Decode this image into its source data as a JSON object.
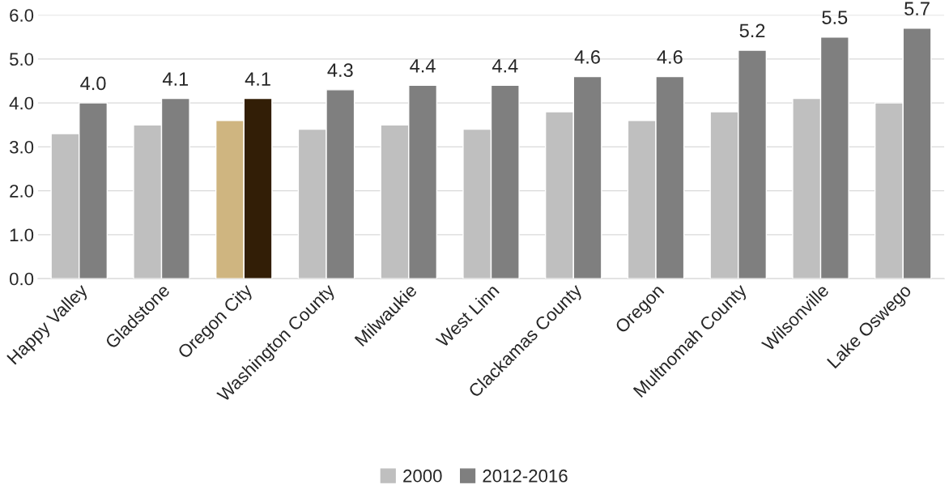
{
  "chart_data": {
    "type": "bar",
    "categories": [
      "Happy Valley",
      "Gladstone",
      "Oregon City",
      "Washington County",
      "Milwaukie",
      "West Linn",
      "Clackamas County",
      "Oregon",
      "Multnomah County",
      "Wilsonville",
      "Lake Oswego"
    ],
    "series": [
      {
        "name": "2000",
        "color": "#bfbfbf",
        "colors": [
          "#bfbfbf",
          "#bfbfbf",
          "#cfb580",
          "#bfbfbf",
          "#bfbfbf",
          "#bfbfbf",
          "#bfbfbf",
          "#bfbfbf",
          "#bfbfbf",
          "#bfbfbf",
          "#bfbfbf"
        ],
        "values": [
          3.3,
          3.5,
          3.6,
          3.4,
          3.5,
          3.4,
          3.8,
          3.6,
          3.8,
          4.1,
          4.0
        ]
      },
      {
        "name": "2012-2016",
        "color": "#7f7f7f",
        "colors": [
          "#7f7f7f",
          "#7f7f7f",
          "#321e06",
          "#7f7f7f",
          "#7f7f7f",
          "#7f7f7f",
          "#7f7f7f",
          "#7f7f7f",
          "#7f7f7f",
          "#7f7f7f",
          "#7f7f7f"
        ],
        "values": [
          4.0,
          4.1,
          4.1,
          4.3,
          4.4,
          4.4,
          4.6,
          4.6,
          5.2,
          5.5,
          5.7
        ],
        "value_labels": [
          "4.0",
          "4.1",
          "4.1",
          "4.3",
          "4.4",
          "4.4",
          "4.6",
          "4.6",
          "5.2",
          "5.5",
          "5.7"
        ]
      }
    ],
    "ylim": [
      0,
      6
    ],
    "yticks": [
      {
        "value": 0,
        "label": "0.0"
      },
      {
        "value": 1,
        "label": "1.0"
      },
      {
        "value": 2,
        "label": "2.0"
      },
      {
        "value": 3,
        "label": "3.0"
      },
      {
        "value": 4,
        "label": "4.0"
      },
      {
        "value": 5,
        "label": "5.0"
      },
      {
        "value": 6,
        "label": "6.0"
      }
    ],
    "grid": "y",
    "legend": "bottom"
  }
}
